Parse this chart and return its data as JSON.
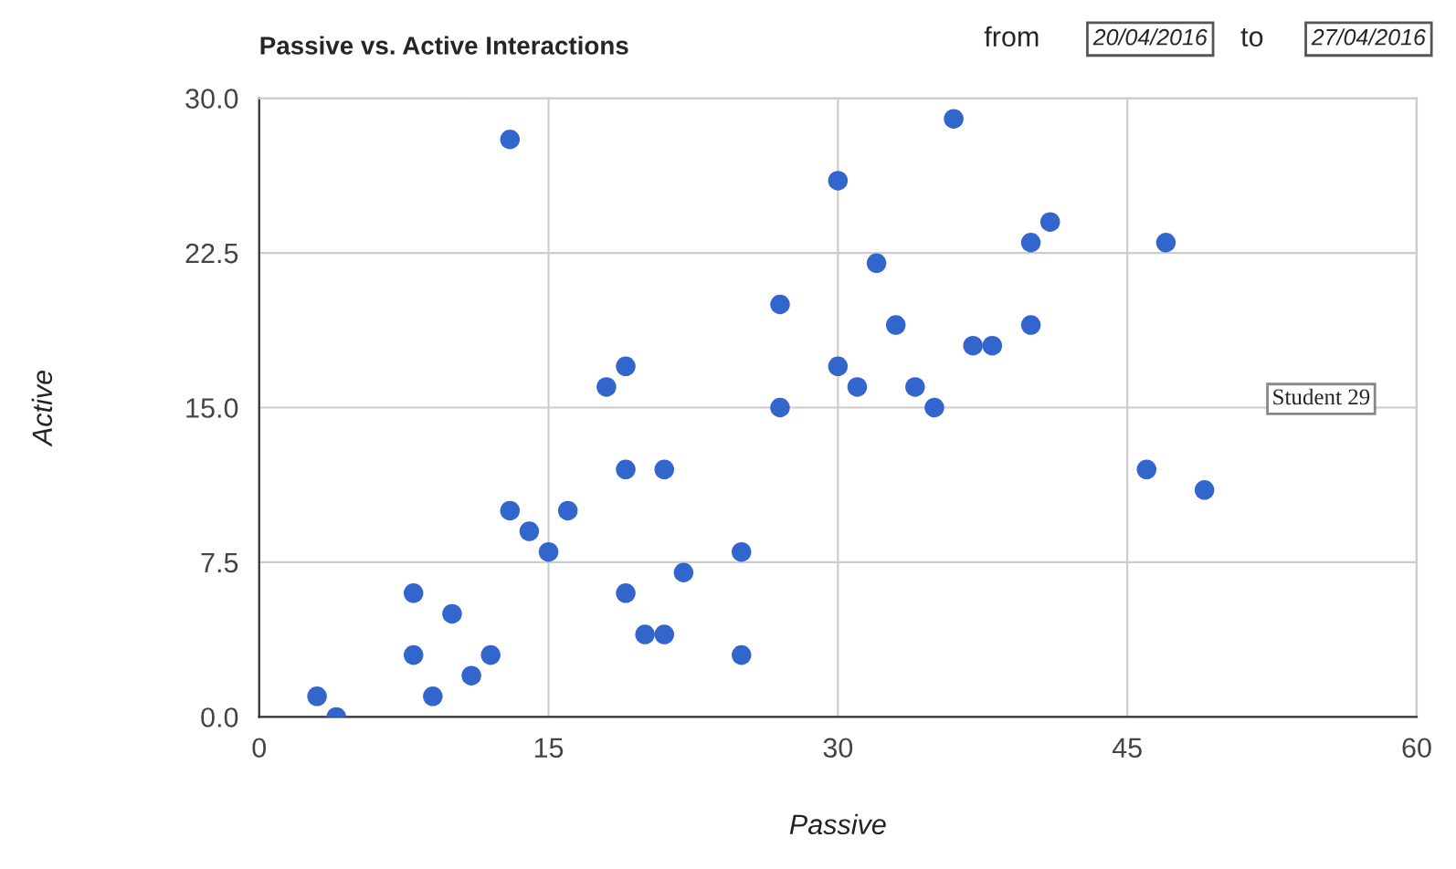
{
  "chart_data": {
    "type": "scatter",
    "title": "Passive vs. Active Interactions",
    "xlabel": "Passive",
    "ylabel": "Active",
    "annotations": [
      "from",
      "20/04/2016",
      "to",
      "27/04/2016",
      "Student 29"
    ],
    "series": [
      {
        "color": "#3366cc",
        "x": [
          3,
          4,
          8,
          8,
          9,
          10,
          11,
          12,
          13,
          13,
          14,
          15,
          16,
          18,
          19,
          19,
          19,
          20,
          21,
          21,
          22,
          25,
          25,
          27,
          27,
          30,
          30,
          31,
          32,
          33,
          34,
          35,
          36,
          37,
          38,
          40,
          40,
          41,
          46,
          47,
          49
        ],
        "values": [
          1,
          0,
          6,
          3,
          1,
          5,
          2,
          3,
          28,
          10,
          9,
          8,
          10,
          16,
          17,
          12,
          6,
          4,
          4,
          12,
          7,
          8,
          3,
          20,
          15,
          26,
          17,
          16,
          22,
          19,
          16,
          15,
          29,
          18,
          18,
          23,
          19,
          24,
          12,
          23,
          11
        ]
      }
    ],
    "xlim": [
      0,
      60
    ],
    "ylim": [
      0,
      30
    ],
    "xticks": [
      0,
      15,
      30,
      45,
      60
    ],
    "yticks": [
      {
        "value": 0,
        "label": "0.0"
      },
      {
        "value": 7.5,
        "label": "7.5"
      },
      {
        "value": 15,
        "label": "15.0"
      },
      {
        "value": 22.5,
        "label": "22.5"
      },
      {
        "value": 30,
        "label": "30.0"
      }
    ],
    "grid": true,
    "marker": "circle",
    "legend": false
  }
}
